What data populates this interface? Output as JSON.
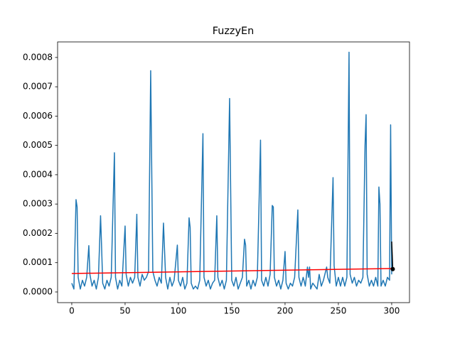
{
  "chart_data": {
    "type": "line",
    "title": "FuzzyEn",
    "xlim": [
      -13.3,
      316.7
    ],
    "xticks": [
      0,
      50,
      100,
      150,
      200,
      250,
      300
    ],
    "ylim": [
      -3.64e-05,
      0.000853
    ],
    "yticks": [
      {
        "value": 0,
        "label": "0.0000"
      },
      {
        "value": 0.0001,
        "label": "0.0001"
      },
      {
        "value": 0.0002,
        "label": "0.0002"
      },
      {
        "value": 0.0003,
        "label": "0.0003"
      },
      {
        "value": 0.0004,
        "label": "0.0004"
      },
      {
        "value": 0.0005,
        "label": "0.0005"
      },
      {
        "value": 0.0006,
        "label": "0.0006"
      },
      {
        "value": 0.0007,
        "label": "0.0007"
      },
      {
        "value": 0.0008,
        "label": "0.0008"
      }
    ],
    "series": [
      {
        "color": "#1f77b4",
        "x": [
          0,
          2,
          4,
          5,
          6,
          8,
          10,
          12,
          14,
          16,
          17,
          19,
          21,
          23,
          25,
          27,
          28,
          29,
          31,
          33,
          35,
          37,
          40,
          41,
          43,
          45,
          47,
          50,
          51,
          53,
          55,
          57,
          59,
          61,
          62,
          64,
          66,
          68,
          70,
          72,
          74,
          76,
          78,
          80,
          82,
          84,
          86,
          88,
          90,
          92,
          94,
          96,
          99,
          100,
          102,
          104,
          106,
          108,
          110,
          111,
          112,
          114,
          116,
          118,
          120,
          123,
          124,
          126,
          128,
          130,
          132,
          134,
          136,
          137,
          139,
          141,
          143,
          145,
          148,
          150,
          152,
          154,
          156,
          158,
          160,
          162,
          163,
          164,
          166,
          168,
          170,
          172,
          174,
          177,
          178,
          180,
          182,
          184,
          186,
          188,
          189,
          190,
          192,
          194,
          196,
          198,
          200,
          201,
          203,
          205,
          207,
          209,
          212,
          213,
          215,
          217,
          219,
          221,
          222,
          223,
          224,
          226,
          228,
          230,
          232,
          234,
          236,
          239,
          240,
          242,
          245,
          246,
          248,
          250,
          252,
          254,
          256,
          258,
          260,
          261,
          263,
          265,
          267,
          269,
          271,
          273,
          275,
          276,
          277,
          279,
          281,
          283,
          285,
          287,
          288,
          289,
          290,
          292,
          294,
          296,
          298,
          299,
          300
        ],
        "values": [
          3e-05,
          1e-05,
          0.000315,
          0.00029,
          5e-05,
          1e-05,
          4e-05,
          2e-05,
          5e-05,
          0.000158,
          6e-05,
          2e-05,
          4e-05,
          1e-05,
          5e-05,
          0.00026,
          0.00015,
          3e-05,
          1e-05,
          4e-05,
          2e-05,
          5e-05,
          0.000475,
          5e-05,
          1e-05,
          4e-05,
          2e-05,
          0.000225,
          6e-05,
          2e-05,
          5e-05,
          3e-05,
          5e-05,
          0.000265,
          5e-05,
          2e-05,
          6e-05,
          4e-05,
          5e-05,
          7e-05,
          0.000755,
          7e-05,
          4e-05,
          2e-05,
          5e-05,
          3e-05,
          0.000235,
          5e-05,
          1e-05,
          5e-05,
          2e-05,
          4e-05,
          0.00016,
          4e-05,
          2e-05,
          5e-05,
          1e-05,
          3e-05,
          0.000253,
          0.00022,
          3e-05,
          1e-05,
          2e-05,
          1e-05,
          4e-05,
          0.00054,
          5e-05,
          2e-05,
          4e-05,
          1e-05,
          3e-05,
          4e-05,
          0.00026,
          5e-05,
          2e-05,
          4e-05,
          1e-05,
          4e-05,
          0.00066,
          4e-05,
          2e-05,
          5e-05,
          1e-05,
          3e-05,
          5e-05,
          0.00018,
          0.00016,
          2e-05,
          4e-05,
          1e-05,
          4e-05,
          2e-05,
          5e-05,
          0.000518,
          4e-05,
          2e-05,
          5e-05,
          2e-05,
          6e-05,
          0.000295,
          0.00029,
          5e-05,
          2e-05,
          4e-05,
          1e-05,
          4e-05,
          0.000138,
          3e-05,
          1e-05,
          3e-05,
          2e-05,
          5e-05,
          0.00028,
          5e-05,
          2e-05,
          5e-05,
          2e-05,
          8.5e-05,
          5e-05,
          8.5e-05,
          1e-05,
          3e-05,
          2e-05,
          1e-05,
          6e-05,
          2e-05,
          4e-05,
          8.5e-05,
          5e-05,
          3e-05,
          0.00039,
          9e-05,
          2e-05,
          5e-05,
          2e-05,
          5e-05,
          2e-05,
          5e-05,
          0.000818,
          6e-05,
          3e-05,
          5e-05,
          2e-05,
          4e-05,
          3e-05,
          5e-05,
          0.0005,
          0.000605,
          6e-05,
          2e-05,
          4e-05,
          2e-05,
          5e-05,
          2e-05,
          0.000358,
          0.0003,
          2e-05,
          4e-05,
          2e-05,
          5e-05,
          4e-05,
          0.00057,
          6e-05
        ]
      },
      {
        "color": "#ff0000",
        "x": [
          0,
          300
        ],
        "values": [
          6.3e-05,
          8e-05
        ]
      },
      {
        "color": "#000000",
        "x": [
          300,
          301
        ],
        "values": [
          0.000172,
          7.8e-05
        ]
      },
      {
        "color": "#000000",
        "marker": "o",
        "x": [
          301
        ],
        "values": [
          7.8e-05
        ]
      }
    ]
  }
}
